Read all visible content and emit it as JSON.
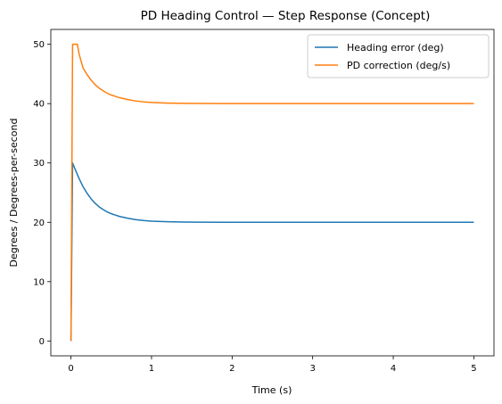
{
  "chart_data": {
    "type": "line",
    "title": "PD Heading Control — Step Response (Concept)",
    "xlabel": "Time (s)",
    "ylabel": "Degrees / Degrees-per-second",
    "xlim": [
      -0.25,
      5.25
    ],
    "ylim": [
      -2.5,
      52.5
    ],
    "xticks": [
      0,
      1,
      2,
      3,
      4,
      5
    ],
    "yticks": [
      0,
      10,
      20,
      30,
      40,
      50
    ],
    "grid": false,
    "legend_position": "top-right",
    "series": [
      {
        "name": "Heading error (deg)",
        "color": "#1f77b4",
        "x": [
          0,
          0.02,
          0.05,
          0.1,
          0.15,
          0.2,
          0.25,
          0.3,
          0.35,
          0.4,
          0.45,
          0.5,
          0.6,
          0.7,
          0.8,
          0.9,
          1.0,
          1.2,
          1.4,
          1.6,
          2.0,
          2.5,
          3.0,
          3.5,
          4.0,
          4.5,
          5.0
        ],
        "y": [
          0,
          30,
          29.0,
          27.4,
          26.0,
          24.9,
          23.95,
          23.2,
          22.6,
          22.15,
          21.75,
          21.45,
          21.0,
          20.7,
          20.45,
          20.3,
          20.2,
          20.09,
          20.04,
          20.02,
          20.0,
          20.0,
          20.0,
          20.0,
          20.0,
          20.0,
          20.0
        ]
      },
      {
        "name": "PD correction (deg/s)",
        "color": "#ff7f0e",
        "x": [
          0,
          0.02,
          0.05,
          0.08,
          0.1,
          0.15,
          0.2,
          0.25,
          0.3,
          0.35,
          0.4,
          0.45,
          0.5,
          0.6,
          0.7,
          0.8,
          0.9,
          1.0,
          1.2,
          1.4,
          1.6,
          2.0,
          2.5,
          3.0,
          3.5,
          4.0,
          4.5,
          5.0
        ],
        "y": [
          0,
          50,
          50,
          50,
          48.4,
          46.0,
          44.9,
          43.95,
          43.2,
          42.6,
          42.15,
          41.75,
          41.45,
          41.0,
          40.7,
          40.45,
          40.3,
          40.2,
          40.09,
          40.04,
          40.02,
          40.0,
          40.0,
          40.0,
          40.0,
          40.0,
          40.0,
          40.0
        ]
      }
    ]
  }
}
